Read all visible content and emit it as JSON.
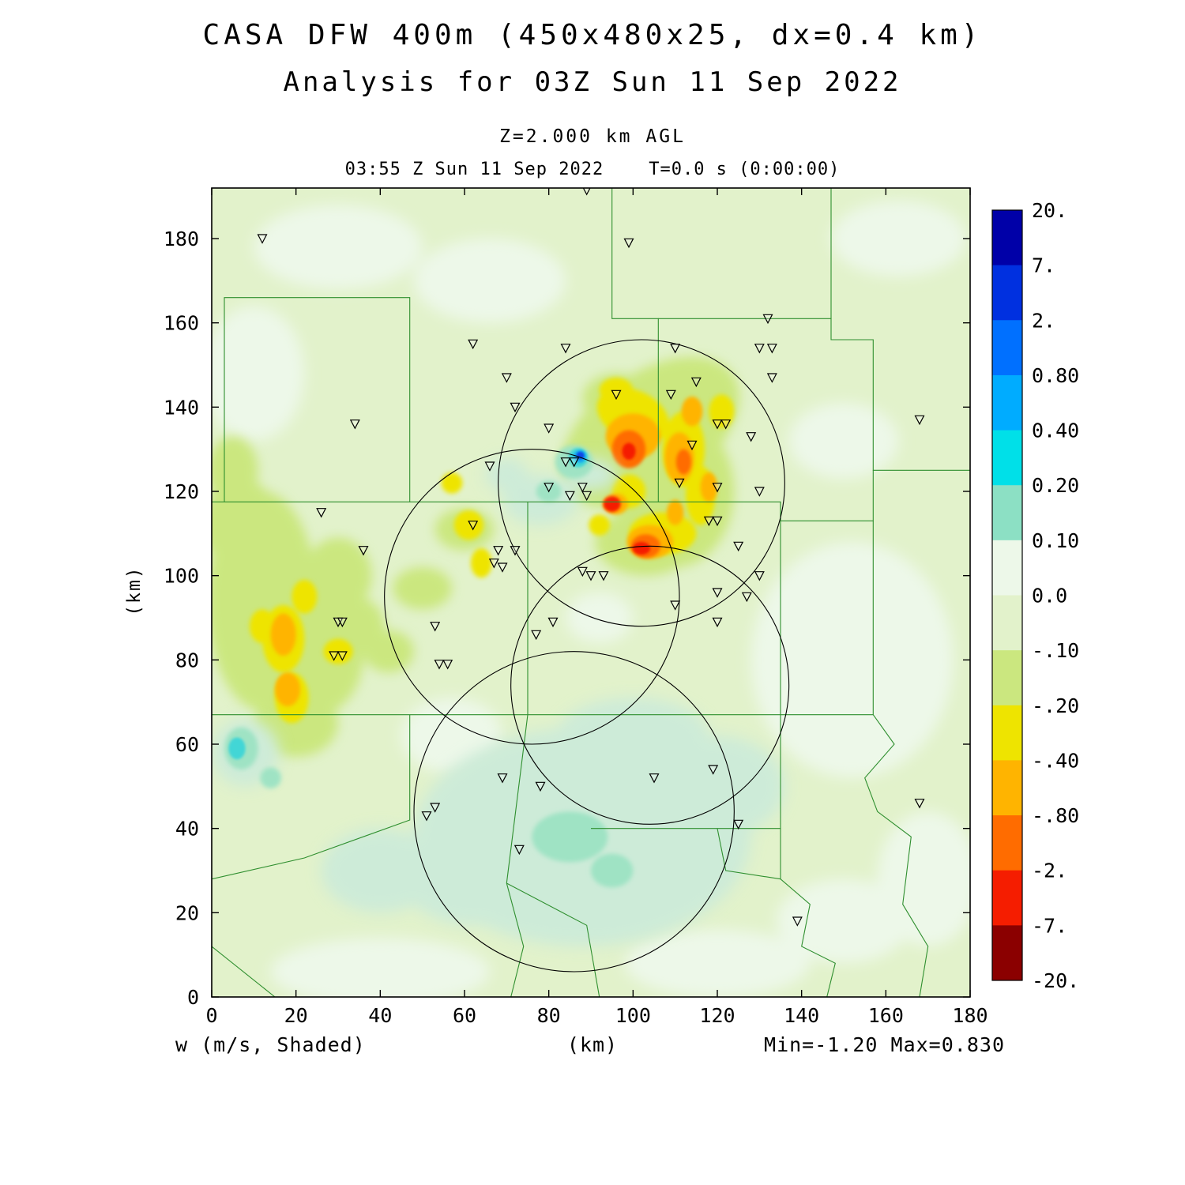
{
  "header": {
    "title1": "CASA DFW 400m (450x480x25, dx=0.4 km)",
    "title2": "Analysis for 03Z Sun 11 Sep 2022",
    "level": "Z=2.000 km AGL",
    "time": "03:55 Z Sun 11 Sep 2022    T=0.0 s (0:00:00)"
  },
  "footer": {
    "shaded": "w (m/s, Shaded)",
    "xlabel": "(km)",
    "minmax": "Min=-1.20 Max=0.830"
  },
  "yaxis_label": "(km)",
  "chart_data": {
    "type": "heatmap",
    "title": "CASA DFW 400m (450x480x25, dx=0.4 km)",
    "subtitle": "Analysis for 03Z Sun 11 Sep 2022",
    "level": "Z=2.000 km AGL",
    "valid_time": "03:55 Z Sun 11 Sep 2022",
    "forecast_time": "T=0.0 s (0:00:00)",
    "variable": "w (m/s, Shaded)",
    "field_min": -1.2,
    "field_max": 0.83,
    "xlabel": "(km)",
    "ylabel": "(km)",
    "xlim": [
      0,
      180
    ],
    "ylim": [
      0,
      192
    ],
    "xticks": [
      0,
      20,
      40,
      60,
      80,
      100,
      120,
      140,
      160,
      180
    ],
    "yticks": [
      0,
      20,
      40,
      60,
      80,
      100,
      120,
      140,
      160,
      180
    ],
    "base_color": "#E2F2CB",
    "county_line_color": "#2F8F2F",
    "colorbar": {
      "boundary_labels": [
        "20.",
        "7.",
        "2.",
        "0.80",
        "0.40",
        "0.20",
        "0.10",
        "0.0",
        "-.10",
        "-.20",
        "-.40",
        "-.80",
        "-2.",
        "-7.",
        "-20."
      ],
      "cell_colors": [
        "#0000A8",
        "#0030E0",
        "#0070FF",
        "#00ACFF",
        "#00E0E8",
        "#8CE0C4",
        "#EDF8E9",
        "#E2F2CB",
        "#CBE77F",
        "#EEE400",
        "#FFB400",
        "#FF6C00",
        "#F51D00",
        "#8B0000"
      ]
    },
    "field_blobs": [
      {
        "name": "pale",
        "color": "#EDF8E9",
        "blur": 9,
        "ellipses": [
          [
            30,
            178,
            20,
            10,
            0
          ],
          [
            10,
            148,
            12,
            16,
            0
          ],
          [
            66,
            170,
            18,
            10,
            0
          ],
          [
            152,
            80,
            24,
            28,
            0
          ],
          [
            163,
            180,
            16,
            9,
            0
          ],
          [
            40,
            6,
            26,
            8,
            0
          ],
          [
            120,
            8,
            22,
            8,
            0
          ],
          [
            170,
            28,
            12,
            16,
            0
          ],
          [
            57,
            62,
            12,
            9,
            0
          ],
          [
            150,
            132,
            13,
            9,
            0
          ],
          [
            150,
            18,
            16,
            10,
            0
          ],
          [
            92,
            90,
            8,
            6,
            0
          ]
        ]
      },
      {
        "name": "yellow-green",
        "color": "#CBE77F",
        "blur": 7,
        "ellipses": [
          [
            12,
            94,
            13,
            26,
            0
          ],
          [
            25,
            81,
            11,
            14,
            0
          ],
          [
            7,
            112,
            9,
            11,
            0
          ],
          [
            30,
            100,
            8,
            9,
            0
          ],
          [
            20,
            65,
            10,
            8,
            0
          ],
          [
            34,
            88,
            7,
            7,
            0
          ],
          [
            104,
            134,
            24,
            14,
            -35
          ],
          [
            110,
            120,
            14,
            18,
            0
          ],
          [
            103,
            108,
            12,
            8,
            0
          ],
          [
            96,
            142,
            8,
            6,
            0
          ],
          [
            60,
            111,
            7,
            5,
            0
          ],
          [
            50,
            97,
            7,
            5,
            0
          ],
          [
            42,
            82,
            6,
            5,
            0
          ],
          [
            5,
            125,
            6,
            8,
            0
          ]
        ]
      },
      {
        "name": "yellow",
        "color": "#EEE400",
        "blur": 3,
        "ellipses": [
          [
            17,
            85,
            5,
            8,
            0
          ],
          [
            19,
            71,
            4,
            6,
            0
          ],
          [
            30,
            82,
            3.5,
            3,
            0
          ],
          [
            61,
            112,
            3.5,
            3.5,
            0
          ],
          [
            57,
            122,
            2.5,
            2.5,
            0
          ],
          [
            64,
            103,
            2.5,
            3.5,
            0
          ],
          [
            100,
            138,
            9,
            6,
            25
          ],
          [
            112,
            130,
            5,
            9,
            0
          ],
          [
            116,
            119,
            3.5,
            7,
            0
          ],
          [
            107,
            110,
            8,
            5,
            0
          ],
          [
            96,
            144,
            4,
            3,
            0
          ],
          [
            121,
            139,
            3,
            4,
            0
          ],
          [
            92,
            112,
            2.5,
            2.5,
            0
          ],
          [
            99,
            120,
            4,
            4,
            0
          ],
          [
            22,
            95,
            3,
            4,
            0
          ],
          [
            12,
            88,
            3,
            4,
            0
          ]
        ]
      },
      {
        "name": "orange-gold",
        "color": "#FFB400",
        "blur": 2.5,
        "ellipses": [
          [
            18,
            73,
            3,
            4,
            0
          ],
          [
            17,
            86,
            3,
            5,
            0
          ],
          [
            100,
            133,
            6.5,
            5.5,
            0
          ],
          [
            104,
            108,
            5.5,
            4,
            0
          ],
          [
            111,
            128,
            3.5,
            6,
            0
          ],
          [
            114,
            139,
            2.5,
            3.5,
            0
          ],
          [
            96,
            117,
            2.8,
            2.5,
            0
          ],
          [
            118,
            121,
            2,
            3.5,
            0
          ],
          [
            110,
            115,
            2,
            3,
            0
          ]
        ]
      },
      {
        "name": "orange",
        "color": "#FF6C00",
        "blur": 2,
        "ellipses": [
          [
            99,
            130,
            4,
            4.5,
            0
          ],
          [
            103,
            107,
            3.5,
            2.8,
            0
          ],
          [
            95,
            117,
            2.2,
            2,
            0
          ],
          [
            112,
            127,
            1.8,
            3,
            0
          ]
        ]
      },
      {
        "name": "red",
        "color": "#F51D00",
        "blur": 1.5,
        "ellipses": [
          [
            95,
            117,
            1.9,
            1.7,
            0
          ],
          [
            102,
            106.5,
            2.1,
            1.5,
            0
          ],
          [
            99,
            129.5,
            1.6,
            2,
            0
          ]
        ]
      },
      {
        "name": "teal-soft",
        "color": "#CDEBD8",
        "blur": 9,
        "ellipses": [
          [
            88,
            38,
            40,
            26,
            0
          ],
          [
            120,
            50,
            16,
            12,
            0
          ],
          [
            62,
            30,
            18,
            13,
            0
          ],
          [
            100,
            62,
            18,
            9,
            0
          ],
          [
            8,
            58,
            8,
            8,
            0
          ],
          [
            78,
            118,
            9,
            6,
            0
          ],
          [
            70,
            124,
            5,
            4,
            0
          ],
          [
            90,
            124,
            6,
            4,
            0
          ],
          [
            40,
            30,
            14,
            10,
            0
          ]
        ]
      },
      {
        "name": "aqua",
        "color": "#9FE3C4",
        "blur": 3,
        "ellipses": [
          [
            7,
            59,
            4,
            5,
            0
          ],
          [
            86,
            127,
            4.5,
            4,
            0
          ],
          [
            80,
            120,
            3,
            2.5,
            0
          ],
          [
            14,
            52,
            2.5,
            2.5,
            0
          ],
          [
            85,
            38,
            9,
            6,
            0
          ],
          [
            95,
            30,
            5,
            4,
            0
          ]
        ]
      },
      {
        "name": "cyan",
        "color": "#43D6D6",
        "blur": 1.5,
        "ellipses": [
          [
            87,
            128,
            2.3,
            2.3,
            0
          ],
          [
            6,
            59,
            2,
            2.6,
            0
          ]
        ]
      },
      {
        "name": "sky-blue",
        "color": "#18A8F0",
        "blur": 1.2,
        "ellipses": [
          [
            87.4,
            128.3,
            1.5,
            1.5,
            0
          ]
        ]
      },
      {
        "name": "blue",
        "color": "#0848E8",
        "blur": 1,
        "ellipses": [
          [
            87.5,
            128.5,
            0.9,
            0.9,
            0
          ]
        ]
      }
    ],
    "county_lines": [
      [
        [
          0,
          117.5
        ],
        [
          47,
          117.5
        ],
        [
          47,
          166
        ],
        [
          3,
          166
        ],
        [
          3,
          117.5
        ]
      ],
      [
        [
          47,
          117.5
        ],
        [
          106,
          117.5
        ],
        [
          106,
          161
        ],
        [
          95,
          161
        ],
        [
          95,
          192
        ]
      ],
      [
        [
          106,
          161
        ],
        [
          147,
          161
        ],
        [
          147,
          192
        ]
      ],
      [
        [
          147,
          161
        ],
        [
          147,
          156
        ],
        [
          157,
          156
        ],
        [
          157,
          125
        ],
        [
          180,
          125
        ]
      ],
      [
        [
          106,
          117.5
        ],
        [
          135,
          117.5
        ],
        [
          135,
          113
        ],
        [
          157,
          113
        ],
        [
          157,
          125
        ]
      ],
      [
        [
          157,
          113
        ],
        [
          157,
          67
        ],
        [
          135,
          67
        ],
        [
          135,
          117.5
        ]
      ],
      [
        [
          0,
          67
        ],
        [
          135,
          67
        ]
      ],
      [
        [
          75,
          67
        ],
        [
          75,
          117.5
        ]
      ],
      [
        [
          157,
          67
        ],
        [
          162,
          60
        ],
        [
          155,
          52
        ],
        [
          158,
          44
        ],
        [
          166,
          38
        ],
        [
          164,
          22
        ],
        [
          170,
          12
        ],
        [
          168,
          0
        ]
      ],
      [
        [
          47,
          67
        ],
        [
          47,
          42
        ],
        [
          22,
          33
        ],
        [
          0,
          28
        ]
      ],
      [
        [
          75,
          67
        ],
        [
          70,
          27
        ],
        [
          74,
          12
        ],
        [
          71,
          0
        ]
      ],
      [
        [
          70,
          27
        ],
        [
          89,
          17
        ],
        [
          92,
          0
        ]
      ],
      [
        [
          90,
          40
        ],
        [
          135,
          40
        ]
      ],
      [
        [
          135,
          28
        ],
        [
          135,
          67
        ]
      ],
      [
        [
          135,
          28
        ],
        [
          142,
          22
        ],
        [
          140,
          12
        ],
        [
          148,
          8
        ],
        [
          146,
          0
        ]
      ],
      [
        [
          120,
          40
        ],
        [
          122,
          30
        ],
        [
          135,
          28
        ]
      ],
      [
        [
          0,
          12
        ],
        [
          15,
          0
        ]
      ]
    ],
    "range_circles": [
      {
        "cx": 102,
        "cy": 122,
        "r": 34
      },
      {
        "cx": 76,
        "cy": 95,
        "r": 35
      },
      {
        "cx": 104,
        "cy": 74,
        "r": 33
      },
      {
        "cx": 86,
        "cy": 44,
        "r": 38
      }
    ],
    "radar_markers": [
      [
        89,
        191.5
      ],
      [
        12,
        180
      ],
      [
        99,
        179
      ],
      [
        132,
        161
      ],
      [
        62,
        155
      ],
      [
        84,
        154
      ],
      [
        110,
        154
      ],
      [
        130,
        154
      ],
      [
        133,
        154
      ],
      [
        133,
        147
      ],
      [
        70,
        147
      ],
      [
        115,
        146
      ],
      [
        109,
        143
      ],
      [
        96,
        143
      ],
      [
        72,
        140
      ],
      [
        34,
        136
      ],
      [
        120,
        136
      ],
      [
        122,
        136
      ],
      [
        168,
        137
      ],
      [
        80,
        135
      ],
      [
        128,
        133
      ],
      [
        114,
        131
      ],
      [
        84,
        127
      ],
      [
        86,
        127
      ],
      [
        66,
        126
      ],
      [
        111,
        122
      ],
      [
        80,
        121
      ],
      [
        88,
        121
      ],
      [
        120,
        121
      ],
      [
        130,
        120
      ],
      [
        85,
        119
      ],
      [
        89,
        119
      ],
      [
        26,
        115
      ],
      [
        118,
        113
      ],
      [
        120,
        113
      ],
      [
        62,
        112
      ],
      [
        36,
        106
      ],
      [
        68,
        106
      ],
      [
        72,
        106
      ],
      [
        125,
        107
      ],
      [
        67,
        103
      ],
      [
        69,
        102
      ],
      [
        88,
        101
      ],
      [
        90,
        100
      ],
      [
        93,
        100
      ],
      [
        130,
        100
      ],
      [
        120,
        96
      ],
      [
        127,
        95
      ],
      [
        110,
        93
      ],
      [
        81,
        89
      ],
      [
        30,
        89
      ],
      [
        31,
        89
      ],
      [
        53,
        88
      ],
      [
        120,
        89
      ],
      [
        77,
        86
      ],
      [
        29,
        81
      ],
      [
        31,
        81
      ],
      [
        54,
        79
      ],
      [
        56,
        79
      ],
      [
        69,
        52
      ],
      [
        78,
        50
      ],
      [
        105,
        52
      ],
      [
        119,
        54
      ],
      [
        53,
        45
      ],
      [
        51,
        43
      ],
      [
        125,
        41
      ],
      [
        73,
        35
      ],
      [
        168,
        46
      ],
      [
        139,
        18
      ]
    ]
  }
}
